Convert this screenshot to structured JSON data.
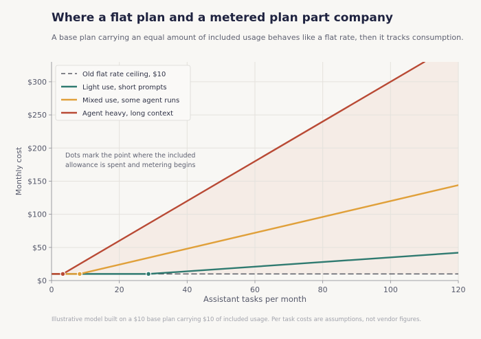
{
  "title": "Where a flat plan and a metered plan part company",
  "subtitle": "A base plan carrying an equal amount of included usage behaves like a flat rate, then it tracks consumption.",
  "footnote": "Illustrative model built on a $10 base plan carrying $10 of included usage. Per task costs are assumptions, not vendor figures.",
  "chart_data": {
    "type": "line",
    "xlabel": "Assistant tasks per month",
    "ylabel": "Monthly cost",
    "xlim": [
      0,
      120
    ],
    "ylim": [
      0,
      330
    ],
    "xticks": [
      0,
      20,
      40,
      60,
      80,
      100,
      120
    ],
    "xtick_labels": [
      "0",
      "20",
      "40",
      "60",
      "80",
      "100",
      "120"
    ],
    "yticks": [
      0,
      50,
      100,
      150,
      200,
      250,
      300
    ],
    "ytick_labels": [
      "$0",
      "$50",
      "$100",
      "$150",
      "$200",
      "$250",
      "$300"
    ],
    "grid": true,
    "legend_position": "top-left",
    "annotation": [
      "Dots mark the point where the included",
      "allowance is spent and metering begins"
    ],
    "series": [
      {
        "name": "Old flat rate ceiling, $10",
        "style": "dashed",
        "color": "#5a5c66",
        "x": [
          0,
          120
        ],
        "y": [
          10,
          10
        ]
      },
      {
        "name": "Light use, short prompts",
        "style": "solid",
        "color": "#2f7a70",
        "x": [
          0,
          28.6,
          120
        ],
        "y": [
          10,
          10,
          42
        ],
        "breakpoint": [
          28.6,
          10
        ]
      },
      {
        "name": "Mixed use, some agent runs",
        "style": "solid",
        "color": "#e0a03a",
        "x": [
          0,
          8.3,
          120
        ],
        "y": [
          10,
          10,
          144
        ],
        "breakpoint": [
          8.3,
          10
        ]
      },
      {
        "name": "Agent heavy, long context",
        "style": "solid",
        "color": "#b94a35",
        "x": [
          0,
          3.33,
          110
        ],
        "y": [
          10,
          10,
          330
        ],
        "breakpoint": [
          3.33,
          10
        ]
      }
    ],
    "shaded_region": {
      "between": [
        "Old flat rate ceiling, $10",
        "Agent heavy, long context"
      ],
      "color": "#f3e4dc"
    }
  }
}
